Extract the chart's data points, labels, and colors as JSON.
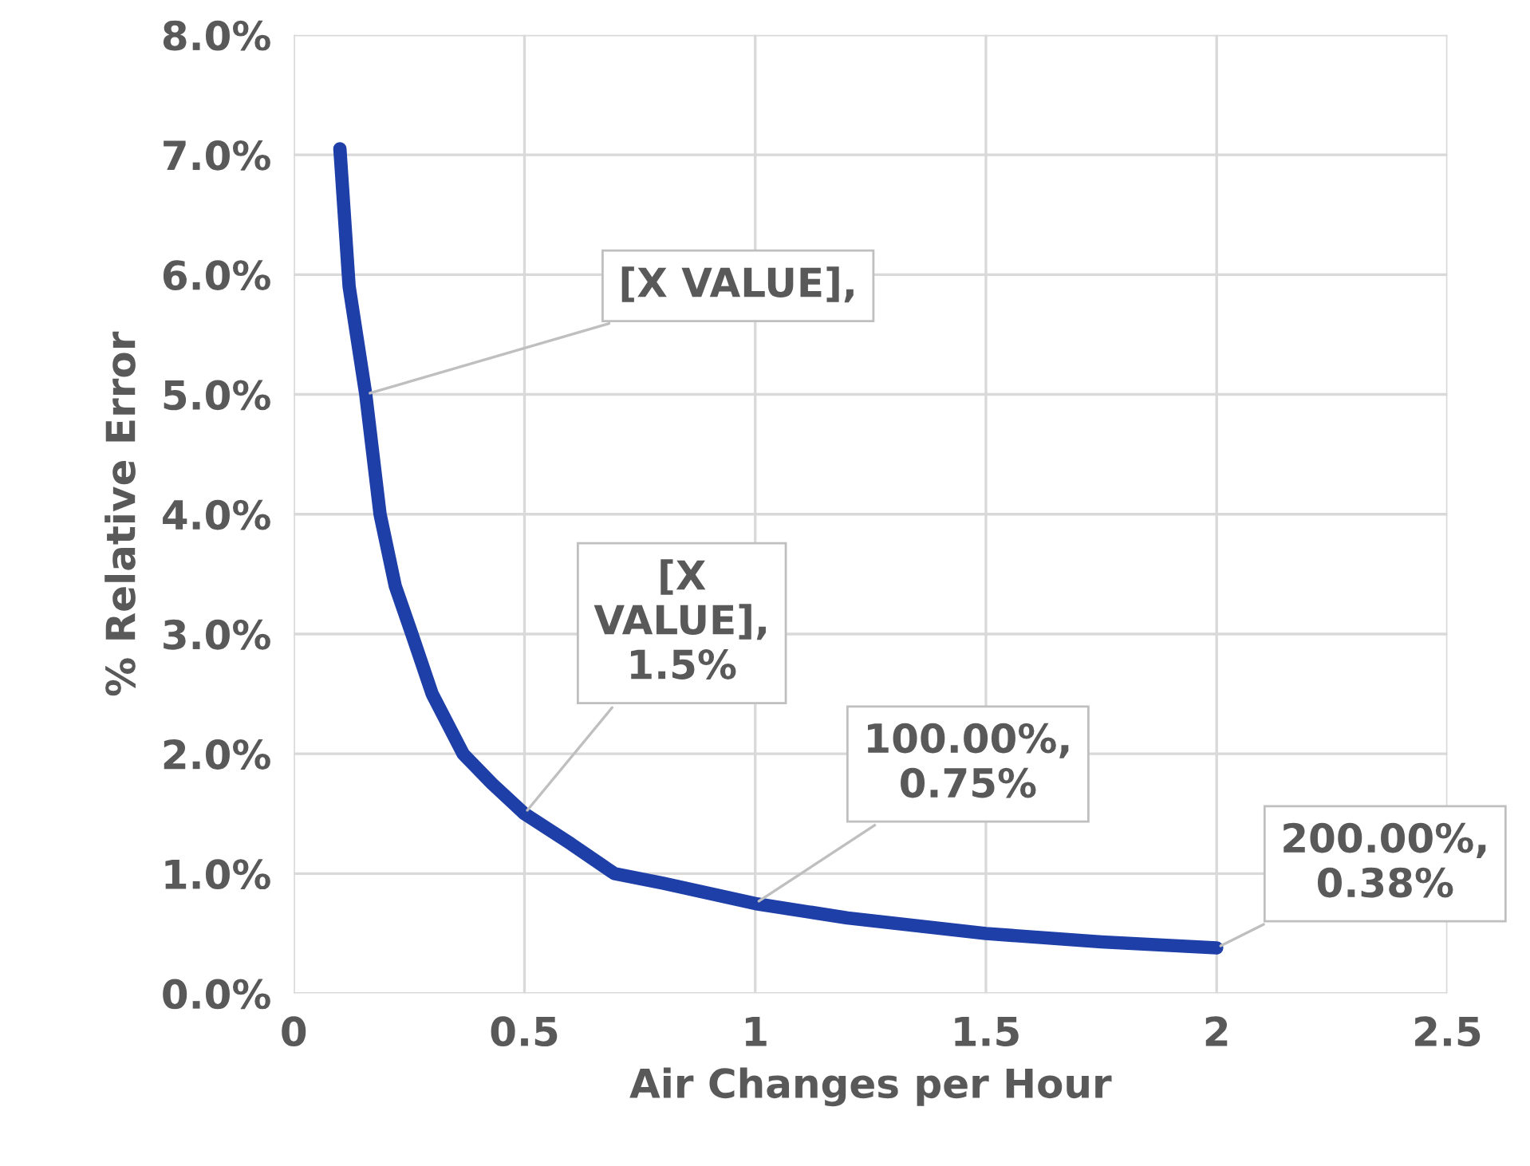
{
  "chart_data": {
    "type": "line",
    "xlabel": "Air Changes per Hour",
    "ylabel": "% Relative Error",
    "series": [
      {
        "color": "#1f3fa8",
        "x": [
          0.1,
          0.12,
          0.156,
          0.187,
          0.22,
          0.256,
          0.3,
          0.367,
          0.43,
          0.5,
          0.6,
          0.695,
          0.8,
          1.0,
          1.2,
          1.5,
          1.75,
          2.0
        ],
        "values": [
          7.05,
          5.9,
          5.0,
          4.0,
          3.4,
          3.0,
          2.5,
          2.0,
          1.75,
          1.5,
          1.25,
          1.0,
          0.92,
          0.75,
          0.63,
          0.5,
          0.43,
          0.38
        ]
      }
    ],
    "annotations": [
      {
        "text": "[X VALUE],",
        "x": 0.156,
        "y": 5.0
      },
      {
        "text": "[X\nVALUE],\n1.5%",
        "x": 0.5,
        "y": 1.5
      },
      {
        "text": "100.00%,\n0.75%",
        "x": 1.0,
        "y": 0.75
      },
      {
        "text": "200.00%,\n0.38%",
        "x": 2.0,
        "y": 0.38
      }
    ],
    "xlim": [
      0,
      2.5
    ],
    "xticks": [
      {
        "value": 0,
        "label": "0"
      },
      0.5,
      {
        "value": 1,
        "label": "1"
      },
      1.5,
      {
        "value": 2,
        "label": "2"
      },
      2.5
    ],
    "ylim": [
      0,
      8
    ],
    "yticks": [
      {
        "value": 0,
        "label": "0.0%"
      },
      {
        "value": 1,
        "label": "1.0%"
      },
      {
        "value": 2,
        "label": "2.0%"
      },
      {
        "value": 3,
        "label": "3.0%"
      },
      {
        "value": 4,
        "label": "4.0%"
      },
      {
        "value": 5,
        "label": "5.0%"
      },
      {
        "value": 6,
        "label": "6.0%"
      },
      {
        "value": 7,
        "label": "7.0%"
      },
      {
        "value": 8,
        "label": "8.0%"
      }
    ],
    "grid": true,
    "marker": "none",
    "line_style": "solid",
    "legend": false
  }
}
